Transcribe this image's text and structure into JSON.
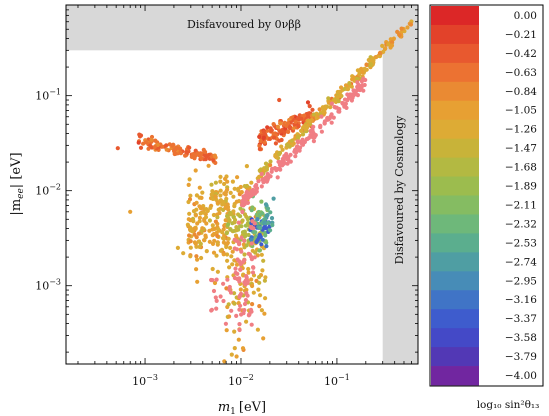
{
  "chart_data": {
    "type": "scatter",
    "xlabel": "m",
    "xlabel_sub": "1",
    "xlabel_unit": "[eV]",
    "ylabel": "|m",
    "ylabel_sub": "ee",
    "ylabel_unit": "| [eV]",
    "x_scale": "log",
    "y_scale": "log",
    "xlim": [
      0.00015,
      0.7
    ],
    "ylim": [
      0.00015,
      0.9
    ],
    "x_ticks": [
      {
        "value": 0.001,
        "base": "10",
        "exp": "−3"
      },
      {
        "value": 0.01,
        "base": "10",
        "exp": "−2"
      },
      {
        "value": 0.1,
        "base": "10",
        "exp": "−1"
      }
    ],
    "y_ticks": [
      {
        "value": 0.001,
        "base": "10",
        "exp": "−3"
      },
      {
        "value": 0.01,
        "base": "10",
        "exp": "−2"
      },
      {
        "value": 0.1,
        "base": "10",
        "exp": "−1"
      }
    ],
    "grid": false,
    "excluded_regions": [
      {
        "label": "Disfavoured by 0νββ",
        "axis": "y",
        "min": 0.3,
        "orientation": "horizontal"
      },
      {
        "label": "Disfavoured by Cosmology",
        "axis": "x",
        "min": 0.3,
        "orientation": "vertical"
      }
    ],
    "colorbar": {
      "title": "log₁₀ sin²θ₁₃",
      "ticks": [
        "0.00",
        "−0.21",
        "−0.42",
        "−0.63",
        "−0.84",
        "−1.05",
        "−1.26",
        "−1.47",
        "−1.68",
        "−1.89",
        "−2.11",
        "−2.32",
        "−2.53",
        "−2.74",
        "−2.95",
        "−3.16",
        "−3.37",
        "−3.58",
        "−3.79",
        "−4.00"
      ],
      "colors": [
        "#dc2727",
        "#e2422a",
        "#e8592f",
        "#ec7232",
        "#ea8a33",
        "#e7a033",
        "#ddab35",
        "#c8b339",
        "#b3b942",
        "#9cbc4e",
        "#85bc62",
        "#6eb87a",
        "#5bae8e",
        "#4f9ea3",
        "#478cb7",
        "#4074c6",
        "#3e5ccd",
        "#4449c7",
        "#5238b5",
        "#7126a0"
      ]
    },
    "clusters": [
      {
        "name": "A",
        "color_value": -0.5,
        "x": [
          0.0155,
          0.058
        ],
        "y_center": 0.047,
        "y_spread": 0.1,
        "trend": 0.45,
        "count": 130
      },
      {
        "name": "B",
        "color_value": -0.6,
        "x": [
          0.00085,
          0.0055
        ],
        "y_center": 0.027,
        "y_spread": 0.06,
        "trend": -0.25,
        "count": 110
      },
      {
        "name": "C",
        "color_value": -1.05,
        "x": [
          0.03,
          0.6
        ],
        "y_ratio": 0.98,
        "ratio_spread": 0.05,
        "count": 110
      },
      {
        "name": "D",
        "color_value": -1.3,
        "x": [
          0.015,
          0.3
        ],
        "y_ratio": 0.99,
        "ratio_spread": 0.07,
        "count": 120
      },
      {
        "name": "E",
        "color_value": -1.15,
        "x": [
          0.0028,
          0.0075
        ],
        "y_center": 0.0045,
        "y_spread": 0.45,
        "count": 170
      },
      {
        "name": "F",
        "color_value": -1.2,
        "x": [
          0.007,
          0.018
        ],
        "y_center": 0.0015,
        "y_spread": 0.8,
        "count": 110
      },
      {
        "name": "G",
        "color_value": -1.2,
        "x": [
          0.0047,
          0.012
        ],
        "y_center": 0.01,
        "y_spread": 0.2,
        "count": 45
      },
      {
        "name": "H",
        "color_value": -1.6,
        "x": [
          0.007,
          0.016
        ],
        "y_center": 0.0042,
        "y_spread": 0.2,
        "count": 60
      },
      {
        "name": "I",
        "color_value": -2.2,
        "x": [
          0.0125,
          0.019
        ],
        "y_center": 0.0042,
        "y_spread": 0.25,
        "count": 45
      },
      {
        "name": "J",
        "color_value": -3.3,
        "x": [
          0.0125,
          0.02
        ],
        "y_center": 0.0038,
        "y_spread": 0.18,
        "count": 30
      },
      {
        "name": "K",
        "color_value": -2.6,
        "x": [
          0.015,
          0.022
        ],
        "y_center": 0.0055,
        "y_spread": 0.2,
        "count": 20
      }
    ],
    "pink_clusters": [
      {
        "name": "P1",
        "color": "#f07e84",
        "x": [
          0.01,
          0.2
        ],
        "y_ratio": 0.72,
        "ratio_spread": 0.08,
        "count": 180
      },
      {
        "name": "P2",
        "color": "#f07e84",
        "x": [
          0.0085,
          0.014
        ],
        "y_center": 0.0016,
        "y_spread": 0.55,
        "count": 70
      },
      {
        "name": "P3",
        "color": "#f07e84",
        "x": [
          0.0045,
          0.008
        ],
        "y_center": 0.0009,
        "y_spread": 0.3,
        "count": 18
      }
    ],
    "outliers": [
      {
        "x": 0.0007,
        "y": 0.006,
        "color_value": -1.1
      },
      {
        "x": 0.00052,
        "y": 0.028,
        "color_value": -0.5
      },
      {
        "x": 0.0067,
        "y": 0.00016,
        "color_value": -1.1
      },
      {
        "x": 0.009,
        "y": 0.00018,
        "color_value": -1.1
      },
      {
        "x": 0.0105,
        "y": 0.00022,
        "color_value": -1.1
      },
      {
        "x": 0.0071,
        "y": 0.00034,
        "color_value": -1.05
      },
      {
        "x": 0.0095,
        "y": 0.00027,
        "color_value": -1.05
      },
      {
        "x": 0.025,
        "y": 0.09,
        "color_value": -0.4
      },
      {
        "x": 0.05,
        "y": 0.085,
        "color_value": -0.3
      },
      {
        "x": 0.0022,
        "y": 0.0025,
        "color_value": -1.2
      },
      {
        "x": 0.0025,
        "y": 0.0022,
        "color_value": -1.2
      },
      {
        "x": 0.0035,
        "y": 0.0011,
        "color_value": -1.1
      }
    ]
  }
}
